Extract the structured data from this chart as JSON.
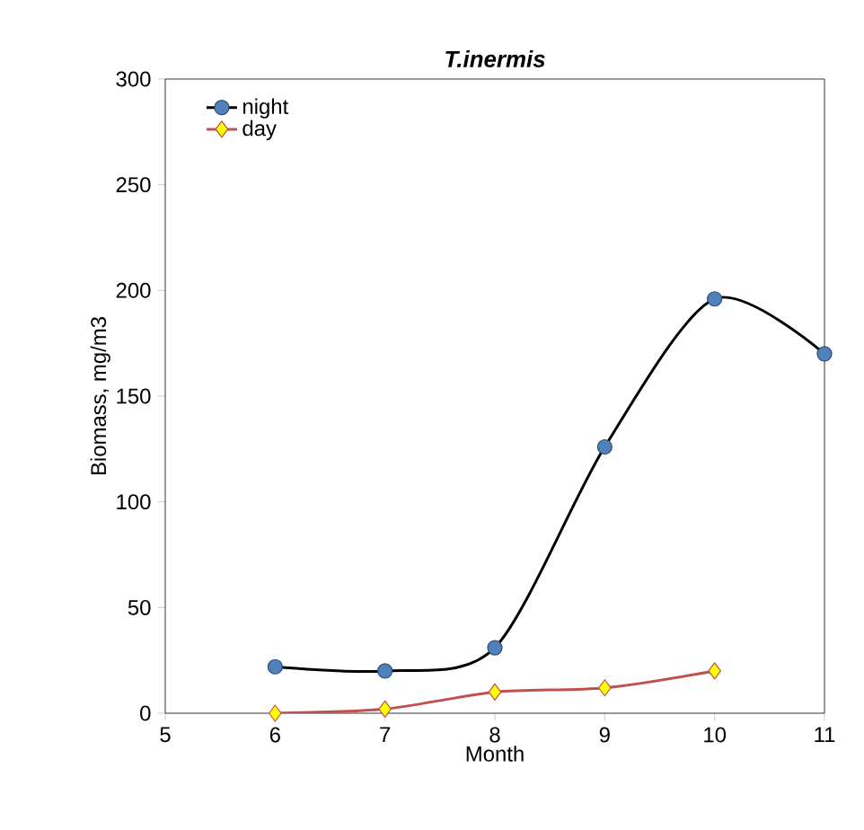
{
  "chart_data": {
    "type": "line",
    "title": "T.inermis",
    "xlabel": "Month",
    "ylabel": "Biomass, mg/m3",
    "x": [
      6,
      7,
      8,
      9,
      10,
      11
    ],
    "series": [
      {
        "name": "night",
        "color": "#4f81bd",
        "marker": "circle",
        "values": [
          22,
          20,
          31,
          126,
          196,
          170
        ]
      },
      {
        "name": "day",
        "color": "#ffff00",
        "marker": "diamond",
        "values": [
          0,
          2,
          10,
          12,
          20,
          null
        ]
      }
    ],
    "xlim": [
      5,
      11
    ],
    "xticks": [
      5,
      6,
      7,
      8,
      9,
      10,
      11
    ],
    "ylim": [
      0,
      300
    ],
    "yticks": [
      0,
      50,
      100,
      150,
      200,
      250,
      300
    ],
    "grid": false,
    "legend": "top left",
    "line_style": "solid"
  }
}
